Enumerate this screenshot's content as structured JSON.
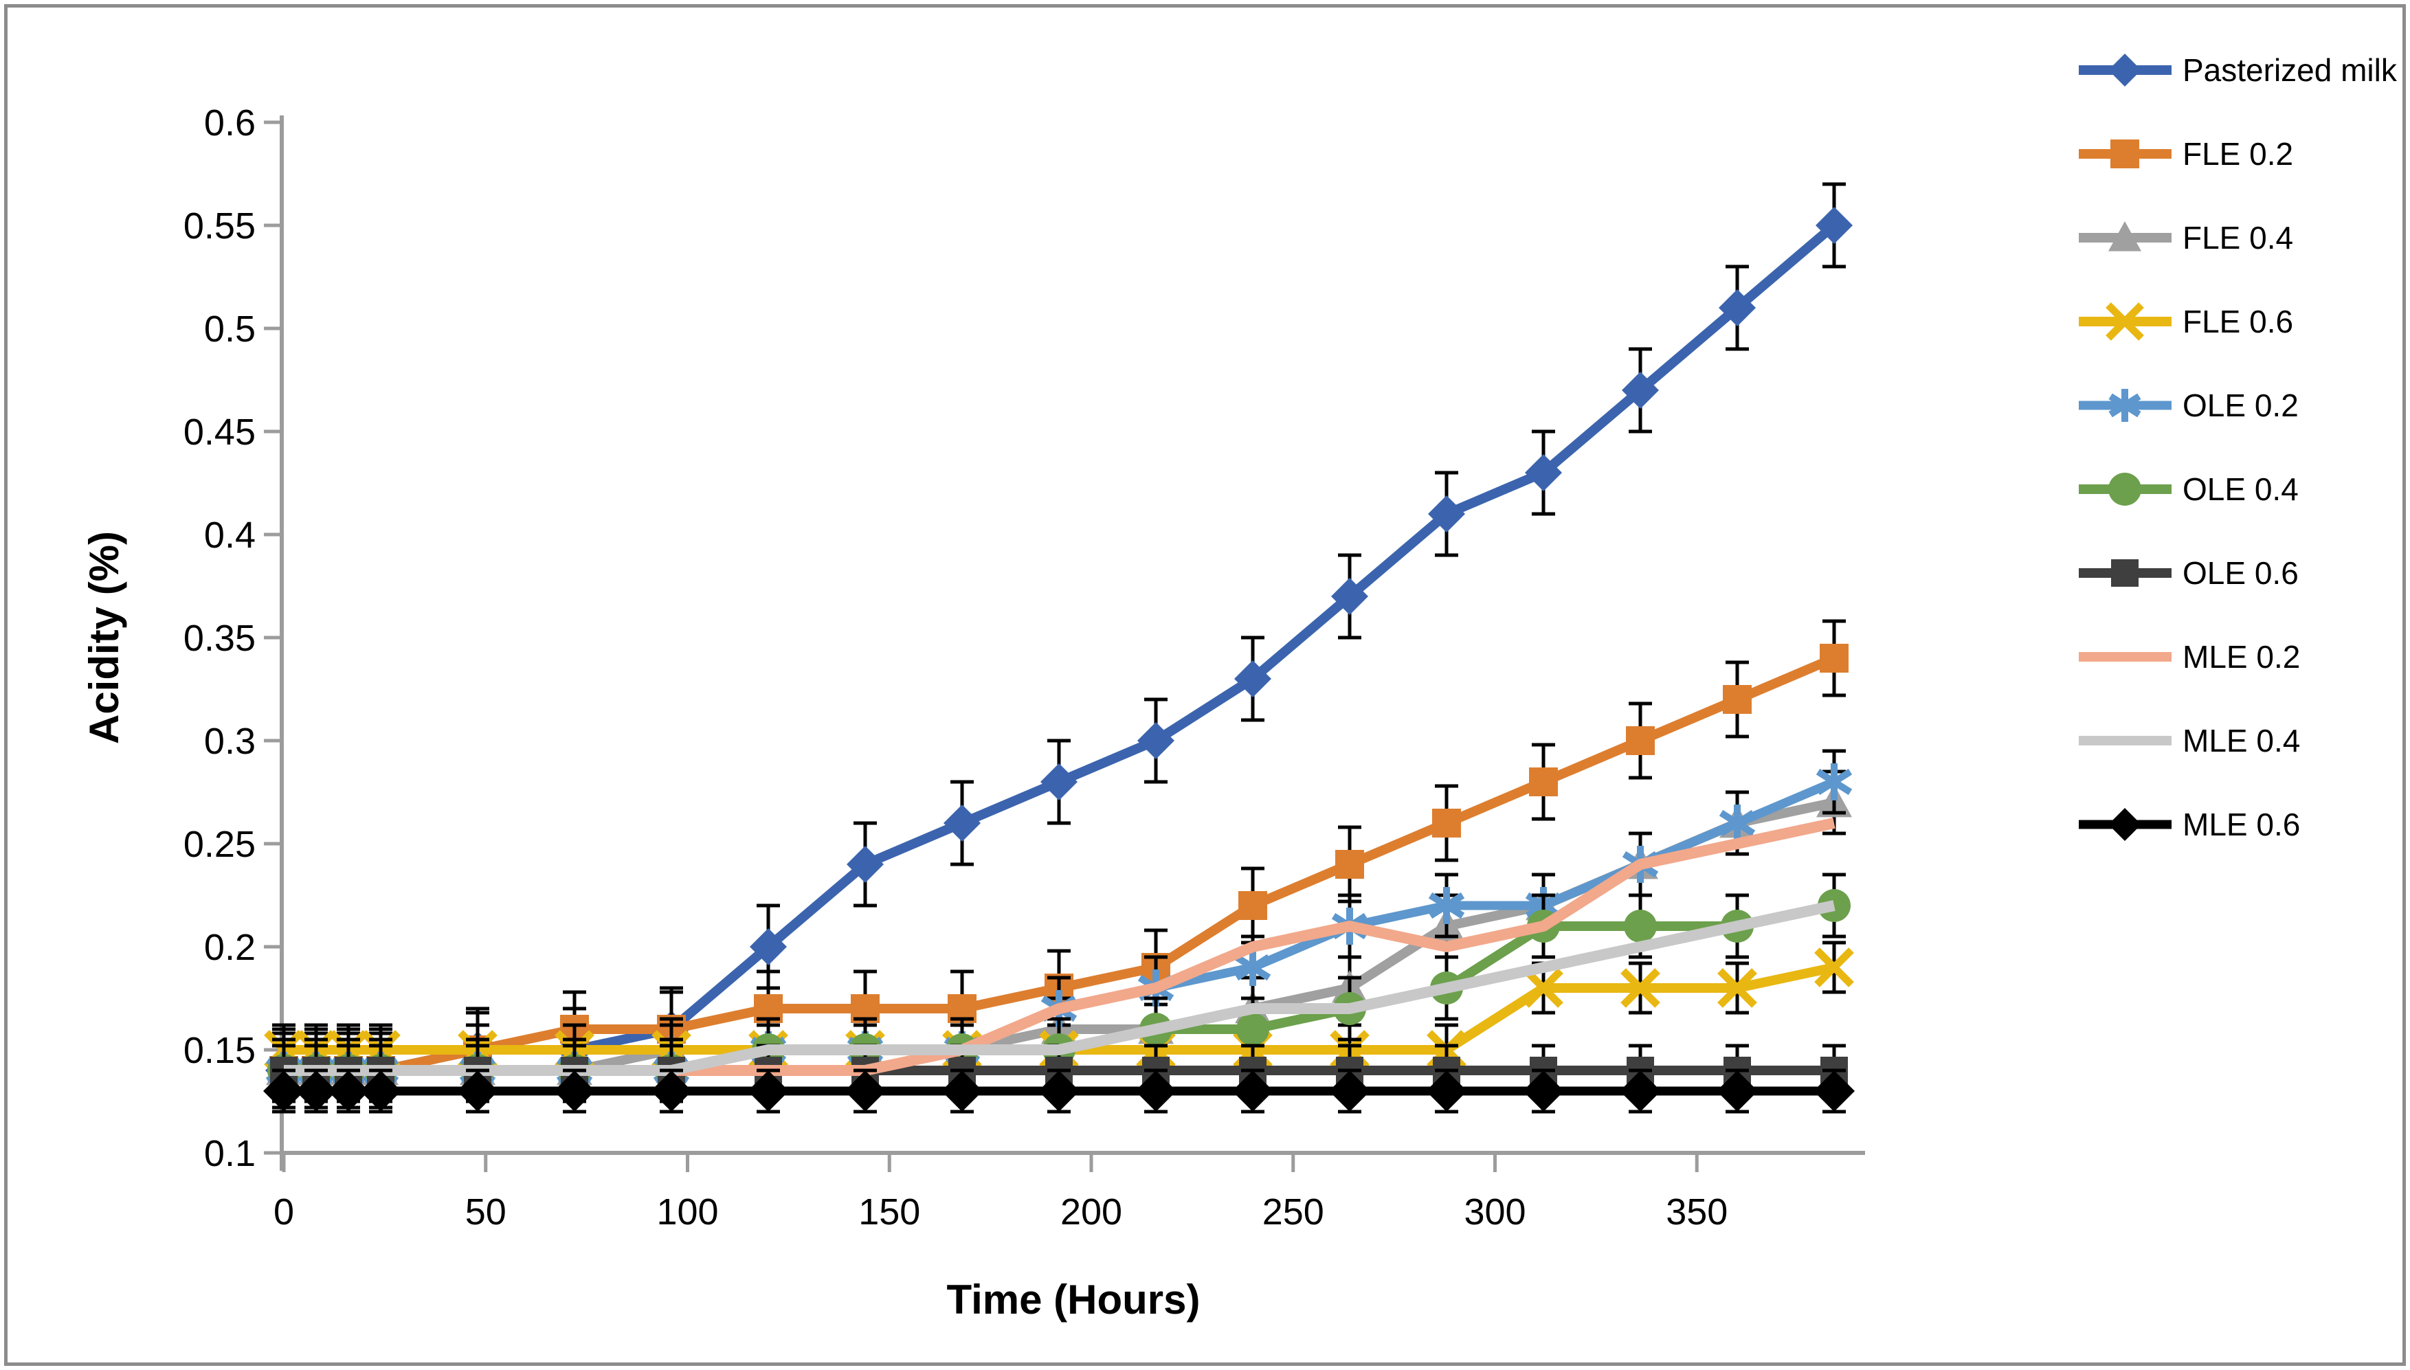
{
  "figure": {
    "background": "#FFFFFF",
    "border_color": "#8C8C8C",
    "axis_color": "#9C9C9C"
  },
  "chart_data": {
    "type": "line",
    "title": "",
    "xlabel": "Time (Hours)",
    "ylabel": "Acidity (%)",
    "x": [
      0,
      8,
      16,
      24,
      48,
      72,
      96,
      120,
      144,
      168,
      192,
      216,
      240,
      264,
      288,
      312,
      336,
      360,
      384
    ],
    "xlim": [
      0,
      392
    ],
    "ylim": [
      0.1,
      0.6
    ],
    "x_ticks": [
      "0",
      "50",
      "100",
      "150",
      "200",
      "250",
      "300",
      "350"
    ],
    "x_tick_values": [
      0,
      50,
      100,
      150,
      200,
      250,
      300,
      350
    ],
    "y_ticks": [
      "0.1",
      "0.15",
      "0.2",
      "0.25",
      "0.3",
      "0.35",
      "0.4",
      "0.45",
      "0.5",
      "0.55",
      "0.6"
    ],
    "y_tick_values": [
      0.1,
      0.15,
      0.2,
      0.25,
      0.3,
      0.35,
      0.4,
      0.45,
      0.5,
      0.55,
      0.6
    ],
    "grid": false,
    "error_bars": true,
    "legend_position": "right",
    "series": [
      {
        "name": "Pasterized milk",
        "color": "#3C64AE",
        "marker": "diamond",
        "ms": 27,
        "lw": 14,
        "err": 0.02,
        "values": [
          0.14,
          0.14,
          0.14,
          0.14,
          0.15,
          0.15,
          0.16,
          0.2,
          0.24,
          0.26,
          0.28,
          0.3,
          0.33,
          0.37,
          0.41,
          0.43,
          0.47,
          0.51,
          0.55
        ]
      },
      {
        "name": "FLE 0.2",
        "color": "#DD7E2F",
        "marker": "square",
        "ms": 21,
        "lw": 14,
        "err": 0.018,
        "values": [
          0.14,
          0.14,
          0.14,
          0.14,
          0.15,
          0.16,
          0.16,
          0.17,
          0.17,
          0.17,
          0.18,
          0.19,
          0.22,
          0.24,
          0.26,
          0.28,
          0.3,
          0.32,
          0.34
        ]
      },
      {
        "name": "FLE 0.4",
        "color": "#A0A0A0",
        "marker": "triangle",
        "ms": 26,
        "lw": 14,
        "err": 0.015,
        "values": [
          0.14,
          0.14,
          0.14,
          0.14,
          0.14,
          0.14,
          0.15,
          0.15,
          0.15,
          0.15,
          0.16,
          0.16,
          0.17,
          0.18,
          0.21,
          0.22,
          0.24,
          0.26,
          0.27
        ]
      },
      {
        "name": "FLE 0.6",
        "color": "#E9B712",
        "marker": "x",
        "ms": 25,
        "lw": 14,
        "err": 0.012,
        "values": [
          0.15,
          0.15,
          0.15,
          0.15,
          0.15,
          0.15,
          0.15,
          0.15,
          0.15,
          0.15,
          0.15,
          0.15,
          0.15,
          0.15,
          0.15,
          0.18,
          0.18,
          0.18,
          0.19
        ]
      },
      {
        "name": "OLE 0.2",
        "color": "#5D97CD",
        "marker": "star",
        "ms": 27,
        "lw": 13,
        "err": 0.015,
        "values": [
          0.14,
          0.14,
          0.14,
          0.14,
          0.14,
          0.14,
          0.14,
          0.15,
          0.15,
          0.15,
          0.17,
          0.18,
          0.19,
          0.21,
          0.22,
          0.22,
          0.24,
          0.26,
          0.28
        ]
      },
      {
        "name": "OLE 0.4",
        "color": "#6CA04C",
        "marker": "circle",
        "ms": 24,
        "lw": 14,
        "err": 0.015,
        "values": [
          0.14,
          0.14,
          0.14,
          0.14,
          0.14,
          0.14,
          0.14,
          0.15,
          0.15,
          0.15,
          0.15,
          0.16,
          0.16,
          0.17,
          0.18,
          0.21,
          0.21,
          0.21,
          0.22
        ]
      },
      {
        "name": "OLE 0.6",
        "color": "#3F3F3F",
        "marker": "square",
        "ms": 20,
        "lw": 14,
        "err": 0.012,
        "values": [
          0.14,
          0.14,
          0.14,
          0.14,
          0.14,
          0.14,
          0.14,
          0.14,
          0.14,
          0.14,
          0.14,
          0.14,
          0.14,
          0.14,
          0.14,
          0.14,
          0.14,
          0.14,
          0.14
        ]
      },
      {
        "name": "MLE 0.2",
        "color": "#F2A88B",
        "marker": "none",
        "ms": 0,
        "lw": 16,
        "err": 0,
        "values": [
          0.14,
          0.14,
          0.14,
          0.14,
          0.14,
          0.14,
          0.14,
          0.14,
          0.14,
          0.15,
          0.17,
          0.18,
          0.2,
          0.21,
          0.2,
          0.21,
          0.24,
          0.25,
          0.26
        ]
      },
      {
        "name": "MLE 0.4",
        "color": "#C8C8C8",
        "marker": "none",
        "ms": 0,
        "lw": 16,
        "err": 0,
        "values": [
          0.14,
          0.14,
          0.14,
          0.14,
          0.14,
          0.14,
          0.14,
          0.15,
          0.15,
          0.15,
          0.15,
          0.16,
          0.17,
          0.17,
          0.18,
          0.19,
          0.2,
          0.21,
          0.22
        ]
      },
      {
        "name": "MLE 0.6",
        "color": "#000000",
        "marker": "diamond",
        "ms": 30,
        "lw": 13,
        "err": 0.01,
        "values": [
          0.13,
          0.13,
          0.13,
          0.13,
          0.13,
          0.13,
          0.13,
          0.13,
          0.13,
          0.13,
          0.13,
          0.13,
          0.13,
          0.13,
          0.13,
          0.13,
          0.13,
          0.13,
          0.13
        ]
      }
    ]
  },
  "layout_note": "error bars are black with end caps; no gridlines; legend at right with line+marker samples"
}
